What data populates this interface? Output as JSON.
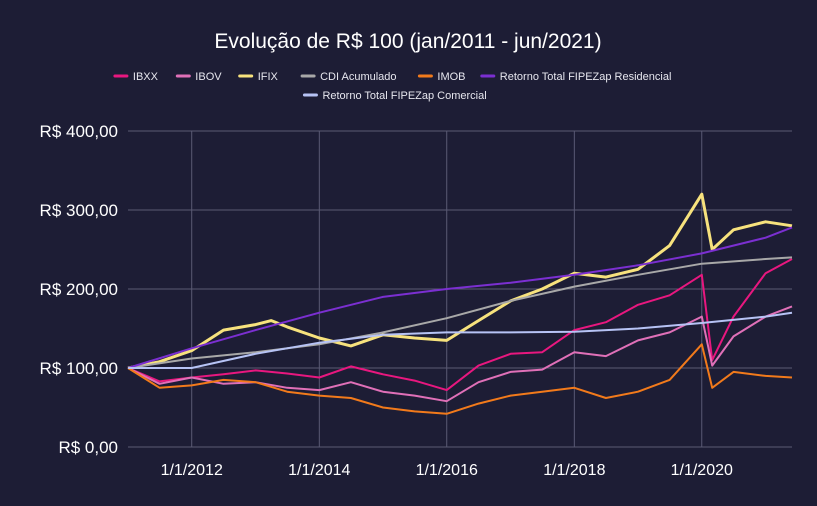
{
  "chart_data": {
    "type": "line",
    "title": "Evolução de R$ 100 (jan/2011 - jun/2021)",
    "xlabel": "",
    "ylabel": "",
    "ylim": [
      0,
      400
    ],
    "xlim": [
      "2011-01-01",
      "2021-06-01"
    ],
    "grid": true,
    "legend_position": "top",
    "yticks": [
      {
        "value": 0,
        "label": "R$ 0,00"
      },
      {
        "value": 100,
        "label": "R$ 100,00"
      },
      {
        "value": 200,
        "label": "R$ 200,00"
      },
      {
        "value": 300,
        "label": "R$ 300,00"
      },
      {
        "value": 400,
        "label": "R$ 400,00"
      }
    ],
    "xticks": [
      {
        "value": "2012-01-01",
        "label": "1/1/2012"
      },
      {
        "value": "2014-01-01",
        "label": "1/1/2014"
      },
      {
        "value": "2016-01-01",
        "label": "1/1/2016"
      },
      {
        "value": "2018-01-01",
        "label": "1/1/2018"
      },
      {
        "value": "2020-01-01",
        "label": "1/1/2020"
      }
    ],
    "series": [
      {
        "name": "IBXX",
        "color": "#e8177f",
        "x": [
          "2011-01-01",
          "2011-07-01",
          "2012-01-01",
          "2012-07-01",
          "2013-01-01",
          "2013-07-01",
          "2014-01-01",
          "2014-07-01",
          "2015-01-01",
          "2015-07-01",
          "2016-01-01",
          "2016-07-01",
          "2017-01-01",
          "2017-07-01",
          "2018-01-01",
          "2018-07-01",
          "2019-01-01",
          "2019-07-01",
          "2020-01-01",
          "2020-03-01",
          "2020-07-01",
          "2021-01-01",
          "2021-06-01"
        ],
        "y": [
          100,
          83,
          88,
          92,
          97,
          93,
          88,
          102,
          92,
          84,
          72,
          103,
          118,
          120,
          148,
          158,
          180,
          192,
          218,
          110,
          165,
          220,
          238
        ]
      },
      {
        "name": "IBOV",
        "color": "#e070b8",
        "x": [
          "2011-01-01",
          "2011-07-01",
          "2012-01-01",
          "2012-07-01",
          "2013-01-01",
          "2013-07-01",
          "2014-01-01",
          "2014-07-01",
          "2015-01-01",
          "2015-07-01",
          "2016-01-01",
          "2016-07-01",
          "2017-01-01",
          "2017-07-01",
          "2018-01-01",
          "2018-07-01",
          "2019-01-01",
          "2019-07-01",
          "2020-01-01",
          "2020-03-01",
          "2020-07-01",
          "2021-01-01",
          "2021-06-01"
        ],
        "y": [
          100,
          80,
          88,
          80,
          82,
          75,
          72,
          82,
          70,
          65,
          58,
          82,
          95,
          98,
          120,
          115,
          135,
          145,
          165,
          103,
          140,
          165,
          178
        ]
      },
      {
        "name": "IFIX",
        "color": "#f7e27d",
        "x": [
          "2011-01-01",
          "2011-07-01",
          "2012-01-01",
          "2012-07-01",
          "2013-01-01",
          "2013-04-01",
          "2013-07-01",
          "2014-01-01",
          "2014-07-01",
          "2015-01-01",
          "2015-07-01",
          "2016-01-01",
          "2016-07-01",
          "2017-01-01",
          "2017-07-01",
          "2018-01-01",
          "2018-07-01",
          "2019-01-01",
          "2019-07-01",
          "2020-01-01",
          "2020-03-01",
          "2020-07-01",
          "2021-01-01",
          "2021-06-01"
        ],
        "y": [
          100,
          108,
          122,
          148,
          155,
          160,
          152,
          138,
          128,
          142,
          138,
          135,
          160,
          185,
          200,
          220,
          215,
          225,
          255,
          320,
          250,
          275,
          285,
          280
        ]
      },
      {
        "name": "CDI Acumulado",
        "color": "#a8a8a8",
        "x": [
          "2011-01-01",
          "2012-01-01",
          "2013-01-01",
          "2014-01-01",
          "2015-01-01",
          "2016-01-01",
          "2017-01-01",
          "2018-01-01",
          "2019-01-01",
          "2020-01-01",
          "2021-01-01",
          "2021-06-01"
        ],
        "y": [
          100,
          112,
          120,
          130,
          145,
          163,
          185,
          203,
          218,
          232,
          238,
          240
        ]
      },
      {
        "name": "IMOB",
        "color": "#f27a1b",
        "x": [
          "2011-01-01",
          "2011-07-01",
          "2012-01-01",
          "2012-07-01",
          "2013-01-01",
          "2013-07-01",
          "2014-01-01",
          "2014-07-01",
          "2015-01-01",
          "2015-07-01",
          "2016-01-01",
          "2016-07-01",
          "2017-01-01",
          "2017-07-01",
          "2018-01-01",
          "2018-07-01",
          "2019-01-01",
          "2019-07-01",
          "2020-01-01",
          "2020-03-01",
          "2020-07-01",
          "2021-01-01",
          "2021-06-01"
        ],
        "y": [
          100,
          75,
          78,
          85,
          82,
          70,
          65,
          62,
          50,
          45,
          42,
          55,
          65,
          70,
          75,
          62,
          70,
          85,
          130,
          75,
          95,
          90,
          88
        ]
      },
      {
        "name": "Retorno Total FIPEZap Residencial",
        "color": "#7b2fd1",
        "x": [
          "2011-01-01",
          "2012-01-01",
          "2013-01-01",
          "2014-01-01",
          "2015-01-01",
          "2016-01-01",
          "2017-01-01",
          "2018-01-01",
          "2019-01-01",
          "2020-01-01",
          "2021-01-01",
          "2021-06-01"
        ],
        "y": [
          100,
          125,
          148,
          170,
          190,
          200,
          208,
          218,
          230,
          245,
          265,
          278
        ]
      },
      {
        "name": "Retorno Total FIPEZap Comercial",
        "color": "#b7c3f5",
        "x": [
          "2011-01-01",
          "2012-01-01",
          "2013-01-01",
          "2014-01-01",
          "2015-01-01",
          "2016-01-01",
          "2017-01-01",
          "2018-01-01",
          "2019-01-01",
          "2020-01-01",
          "2021-01-01",
          "2021-06-01"
        ],
        "y": [
          100,
          100,
          118,
          132,
          142,
          145,
          145,
          146,
          150,
          157,
          165,
          170
        ]
      }
    ]
  }
}
